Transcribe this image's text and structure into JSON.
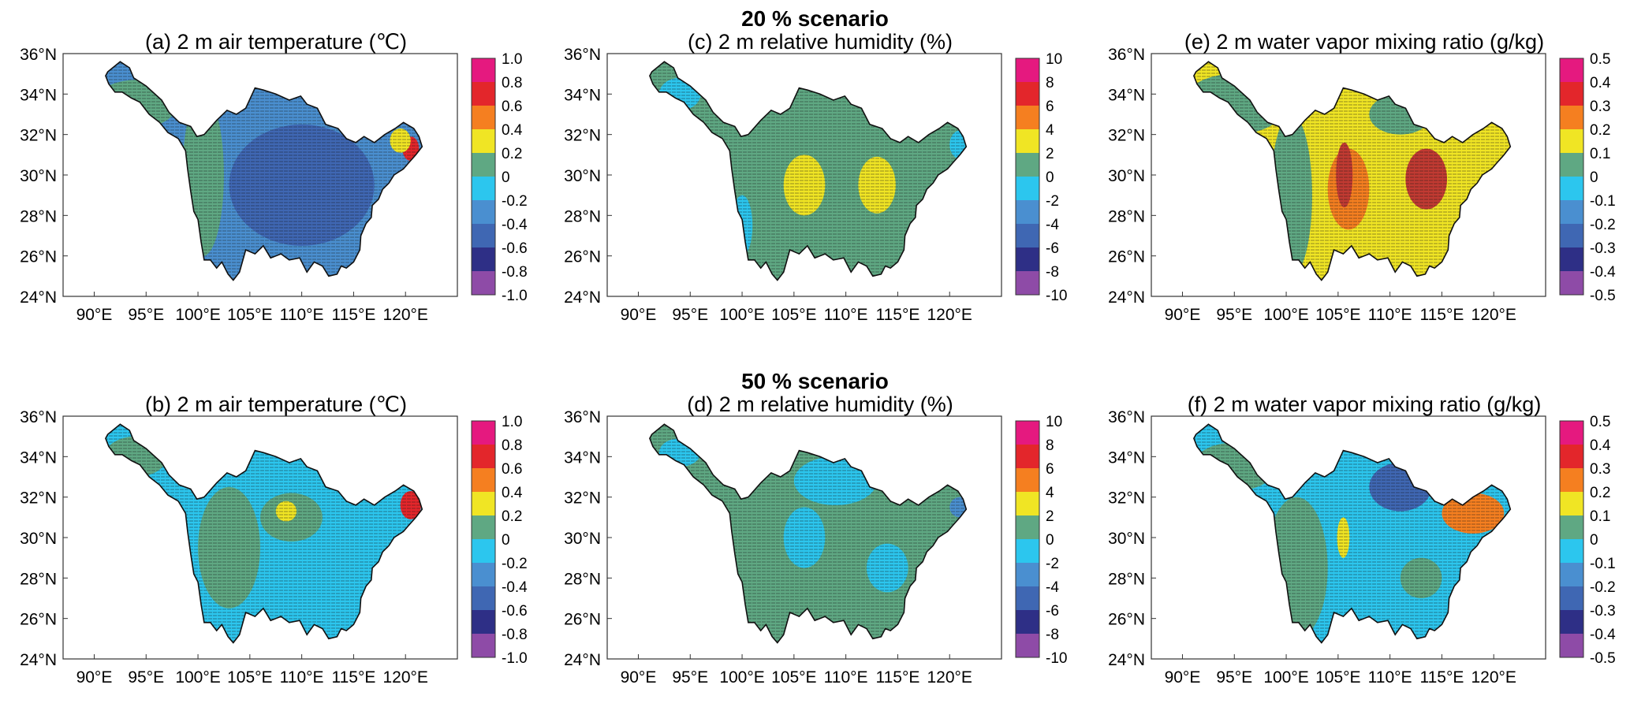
{
  "figure": {
    "scenario_titles": [
      "20 % scenario",
      "50 % scenario"
    ]
  },
  "axes": {
    "lon_ticks": [
      "90°E",
      "95°E",
      "100°E",
      "105°E",
      "110°E",
      "115°E",
      "120°E"
    ],
    "lat_ticks": [
      "36°N",
      "34°N",
      "32°N",
      "30°N",
      "28°N",
      "26°N",
      "24°N"
    ],
    "lon_range": [
      87,
      125
    ],
    "lat_range": [
      24,
      36
    ]
  },
  "colors": {
    "scale": [
      "#8e4ba7",
      "#2e2f86",
      "#3f67b3",
      "#4a8fd0",
      "#2cc6ee",
      "#5fa883",
      "#f0e524",
      "#f57f20",
      "#e3262b",
      "#e5197f"
    ],
    "basin_fill": {
      "blue_dark": "#3f67b3",
      "blue_mid": "#4a8fd0",
      "light_blue": "#2cc6ee",
      "green": "#5fa883",
      "yellow": "#f0e524",
      "orange": "#f57f20",
      "red": "#e3262b",
      "brown_red": "#c13a32"
    }
  },
  "colorbars": {
    "temperature": [
      "1.0",
      "0.8",
      "0.6",
      "0.4",
      "0.2",
      "0",
      "-0.2",
      "-0.4",
      "-0.6",
      "-0.8",
      "-1.0"
    ],
    "humidity": [
      "10",
      "8",
      "6",
      "4",
      "2",
      "0",
      "-2",
      "-4",
      "-6",
      "-8",
      "-10"
    ],
    "mixing_ratio": [
      "0.5",
      "0.4",
      "0.3",
      "0.2",
      "0.1",
      "0",
      "-0.1",
      "-0.2",
      "-0.3",
      "-0.4",
      "-0.5"
    ]
  },
  "panels": [
    {
      "id": "a",
      "title": "(a) 2 m air temperature (℃)",
      "colorbar": "temperature",
      "base": "blue_mid",
      "patches": [
        {
          "lon": 110,
          "lat": 29.5,
          "rx": 7,
          "ry": 3,
          "color": "blue_dark"
        },
        {
          "lon": 94,
          "lat": 33.5,
          "rx": 4,
          "ry": 1.2,
          "color": "green"
        },
        {
          "lon": 100.5,
          "lat": 30,
          "rx": 2,
          "ry": 4,
          "color": "green"
        },
        {
          "lon": 120.5,
          "lat": 31.3,
          "rx": 0.8,
          "ry": 0.6,
          "color": "red"
        },
        {
          "lon": 119.5,
          "lat": 31.7,
          "rx": 1,
          "ry": 0.6,
          "color": "yellow"
        }
      ]
    },
    {
      "id": "c",
      "title": "(c) 2 m relative humidity (%)",
      "colorbar": "humidity",
      "base": "green",
      "patches": [
        {
          "lon": 106,
          "lat": 29.5,
          "rx": 2,
          "ry": 1.5,
          "color": "yellow"
        },
        {
          "lon": 113,
          "lat": 29.5,
          "rx": 1.8,
          "ry": 1.4,
          "color": "yellow"
        },
        {
          "lon": 94,
          "lat": 34,
          "rx": 2,
          "ry": 0.8,
          "color": "light_blue"
        },
        {
          "lon": 100,
          "lat": 27.5,
          "rx": 1,
          "ry": 1.5,
          "color": "light_blue"
        },
        {
          "lon": 121,
          "lat": 31.5,
          "rx": 1,
          "ry": 0.7,
          "color": "light_blue"
        }
      ]
    },
    {
      "id": "e",
      "title": "(e) 2 m water vapor mixing ratio (g/kg)",
      "colorbar": "mixing_ratio",
      "base": "yellow",
      "patches": [
        {
          "lon": 95,
          "lat": 33.5,
          "rx": 5,
          "ry": 1.5,
          "color": "green"
        },
        {
          "lon": 100.5,
          "lat": 29,
          "rx": 2,
          "ry": 4,
          "color": "green"
        },
        {
          "lon": 106,
          "lat": 29.3,
          "rx": 2,
          "ry": 2,
          "color": "orange"
        },
        {
          "lon": 105.6,
          "lat": 30,
          "rx": 0.8,
          "ry": 1.6,
          "color": "brown_red"
        },
        {
          "lon": 113.5,
          "lat": 29.8,
          "rx": 2,
          "ry": 1.5,
          "color": "brown_red"
        },
        {
          "lon": 111,
          "lat": 33,
          "rx": 3,
          "ry": 1,
          "color": "green"
        }
      ]
    },
    {
      "id": "b",
      "title": "(b) 2 m air temperature (℃)",
      "colorbar": "temperature",
      "base": "light_blue",
      "patches": [
        {
          "lon": 103,
          "lat": 29.5,
          "rx": 3,
          "ry": 3,
          "color": "green"
        },
        {
          "lon": 109,
          "lat": 31,
          "rx": 3,
          "ry": 1.2,
          "color": "green"
        },
        {
          "lon": 94,
          "lat": 34,
          "rx": 3,
          "ry": 1,
          "color": "green"
        },
        {
          "lon": 120.5,
          "lat": 31.6,
          "rx": 1,
          "ry": 0.7,
          "color": "red"
        },
        {
          "lon": 108.5,
          "lat": 31.3,
          "rx": 1,
          "ry": 0.5,
          "color": "yellow"
        }
      ]
    },
    {
      "id": "d",
      "title": "(d) 2 m relative humidity (%)",
      "colorbar": "humidity",
      "base": "green",
      "patches": [
        {
          "lon": 109,
          "lat": 32.8,
          "rx": 4,
          "ry": 1.2,
          "color": "light_blue"
        },
        {
          "lon": 106,
          "lat": 30,
          "rx": 2,
          "ry": 1.5,
          "color": "light_blue"
        },
        {
          "lon": 114,
          "lat": 28.5,
          "rx": 2,
          "ry": 1.2,
          "color": "light_blue"
        },
        {
          "lon": 94,
          "lat": 34.2,
          "rx": 2,
          "ry": 0.7,
          "color": "light_blue"
        },
        {
          "lon": 121,
          "lat": 31.5,
          "rx": 1,
          "ry": 0.5,
          "color": "blue_mid"
        }
      ]
    },
    {
      "id": "f",
      "title": "(f) 2 m water vapor mixing ratio (g/kg)",
      "colorbar": "mixing_ratio",
      "base": "light_blue",
      "patches": [
        {
          "lon": 101,
          "lat": 28.5,
          "rx": 3,
          "ry": 3.5,
          "color": "green"
        },
        {
          "lon": 95,
          "lat": 33.5,
          "rx": 4,
          "ry": 1.2,
          "color": "green"
        },
        {
          "lon": 111,
          "lat": 32.5,
          "rx": 3,
          "ry": 1.2,
          "color": "blue_dark"
        },
        {
          "lon": 118,
          "lat": 31.2,
          "rx": 3,
          "ry": 1,
          "color": "orange"
        },
        {
          "lon": 105.5,
          "lat": 30,
          "rx": 0.6,
          "ry": 1,
          "color": "yellow"
        },
        {
          "lon": 113,
          "lat": 28,
          "rx": 2,
          "ry": 1,
          "color": "green"
        }
      ]
    }
  ]
}
